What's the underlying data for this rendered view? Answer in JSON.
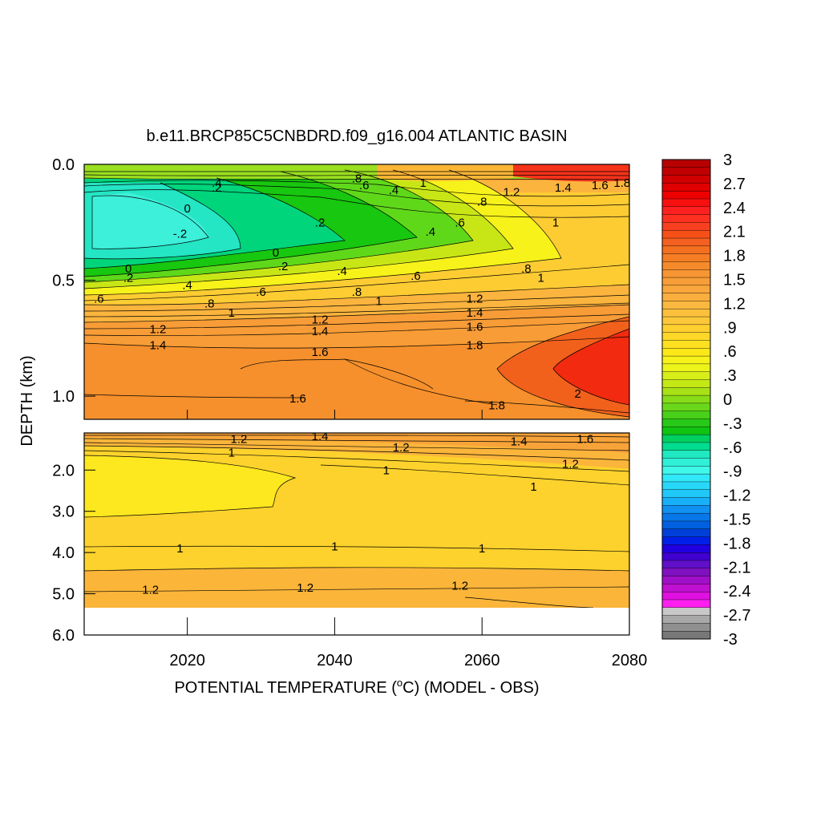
{
  "chart_data": {
    "type": "heatmap",
    "title": "b.e11.BRCP85C5CNBDRD.f09_g16.004 ATLANTIC BASIN",
    "xlabel": "POTENTIAL TEMPERATURE (",
    "xlabel_unit": "o",
    "xlabel_tail": "C) (MODEL - OBS)",
    "ylabel": "DEPTH (km)",
    "xlim": [
      2006,
      2080
    ],
    "x_ticks": [
      {
        "value": 2020,
        "label": "2020"
      },
      {
        "value": 2040,
        "label": "2040"
      },
      {
        "value": 2060,
        "label": "2060"
      },
      {
        "value": 2080,
        "label": "2080"
      }
    ],
    "upper_panel": {
      "ylim": [
        0.0,
        1.1
      ],
      "y_ticks": [
        {
          "value": 0.0,
          "label": "0.0"
        },
        {
          "value": 0.5,
          "label": "0.5"
        },
        {
          "value": 1.0,
          "label": "1.0"
        }
      ]
    },
    "lower_panel": {
      "ylim": [
        1.1,
        6.0
      ],
      "y_ticks": [
        {
          "value": 2.0,
          "label": "2.0"
        },
        {
          "value": 3.0,
          "label": "3.0"
        },
        {
          "value": 4.0,
          "label": "4.0"
        },
        {
          "value": 5.0,
          "label": "5.0"
        },
        {
          "value": 6.0,
          "label": "6.0"
        }
      ]
    },
    "colorbar": {
      "range": [
        -3,
        3
      ],
      "labels": [
        "3",
        "2.7",
        "2.4",
        "2.1",
        "1.8",
        "1.5",
        "1.2",
        ".9",
        ".6",
        ".3",
        "0",
        "-.3",
        "-.6",
        "-.9",
        "-1.2",
        "-1.5",
        "-1.8",
        "-2.1",
        "-2.4",
        "-2.7",
        "-3"
      ]
    },
    "upper_contour_labels": [
      {
        "text": ".4",
        "x": 2024,
        "y": 0.08
      },
      {
        "text": ".2",
        "x": 2024,
        "y": 0.1
      },
      {
        "text": ".8",
        "x": 2043,
        "y": 0.06
      },
      {
        "text": ".6",
        "x": 2044,
        "y": 0.09
      },
      {
        "text": ".4",
        "x": 2048,
        "y": 0.11
      },
      {
        "text": "1",
        "x": 2052,
        "y": 0.08
      },
      {
        "text": "1.2",
        "x": 2064,
        "y": 0.12
      },
      {
        "text": "1.4",
        "x": 2071,
        "y": 0.1
      },
      {
        "text": "1.6",
        "x": 2076,
        "y": 0.09
      },
      {
        "text": "1.8",
        "x": 2079,
        "y": 0.08
      },
      {
        "text": "0",
        "x": 2020,
        "y": 0.19
      },
      {
        "text": ".8",
        "x": 2060,
        "y": 0.16
      },
      {
        "text": ".6",
        "x": 2057,
        "y": 0.25
      },
      {
        "text": ".2",
        "x": 2038,
        "y": 0.25
      },
      {
        "text": "1",
        "x": 2070,
        "y": 0.25
      },
      {
        "text": "-.2",
        "x": 2019,
        "y": 0.3
      },
      {
        "text": ".4",
        "x": 2053,
        "y": 0.29
      },
      {
        "text": "0",
        "x": 2032,
        "y": 0.38
      },
      {
        "text": ".2",
        "x": 2033,
        "y": 0.44
      },
      {
        "text": "0",
        "x": 2012,
        "y": 0.45
      },
      {
        "text": ".2",
        "x": 2012,
        "y": 0.49
      },
      {
        "text": ".4",
        "x": 2041,
        "y": 0.46
      },
      {
        "text": ".6",
        "x": 2051,
        "y": 0.48
      },
      {
        "text": ".8",
        "x": 2066,
        "y": 0.45
      },
      {
        "text": "1",
        "x": 2068,
        "y": 0.49
      },
      {
        "text": ".4",
        "x": 2020,
        "y": 0.52
      },
      {
        "text": ".6",
        "x": 2030,
        "y": 0.55
      },
      {
        "text": ".8",
        "x": 2043,
        "y": 0.55
      },
      {
        "text": ".6",
        "x": 2008,
        "y": 0.58
      },
      {
        "text": "1",
        "x": 2046,
        "y": 0.59
      },
      {
        "text": "1.2",
        "x": 2059,
        "y": 0.58
      },
      {
        "text": ".8",
        "x": 2023,
        "y": 0.6
      },
      {
        "text": "1",
        "x": 2026,
        "y": 0.64
      },
      {
        "text": "1.4",
        "x": 2059,
        "y": 0.64
      },
      {
        "text": "1.2",
        "x": 2038,
        "y": 0.67
      },
      {
        "text": "1.6",
        "x": 2059,
        "y": 0.7
      },
      {
        "text": "1.2",
        "x": 2016,
        "y": 0.71
      },
      {
        "text": "1.4",
        "x": 2038,
        "y": 0.72
      },
      {
        "text": "1.4",
        "x": 2016,
        "y": 0.78
      },
      {
        "text": "1.8",
        "x": 2059,
        "y": 0.78
      },
      {
        "text": "1.6",
        "x": 2038,
        "y": 0.81
      },
      {
        "text": "2",
        "x": 2073,
        "y": 0.99
      },
      {
        "text": "1.6",
        "x": 2035,
        "y": 1.01
      },
      {
        "text": "1.8",
        "x": 2062,
        "y": 1.04
      }
    ],
    "lower_contour_labels": [
      {
        "text": "1.2",
        "x": 2027,
        "y": 1.25
      },
      {
        "text": "1",
        "x": 2026,
        "y": 1.58
      },
      {
        "text": "1.4",
        "x": 2038,
        "y": 1.18
      },
      {
        "text": "1.2",
        "x": 2049,
        "y": 1.45
      },
      {
        "text": "1.4",
        "x": 2065,
        "y": 1.3
      },
      {
        "text": "1.6",
        "x": 2074,
        "y": 1.25
      },
      {
        "text": "1.2",
        "x": 2072,
        "y": 1.85
      },
      {
        "text": "1",
        "x": 2047,
        "y": 2.0
      },
      {
        "text": "1",
        "x": 2067,
        "y": 2.4
      },
      {
        "text": "1",
        "x": 2019,
        "y": 3.9
      },
      {
        "text": "1",
        "x": 2040,
        "y": 3.85
      },
      {
        "text": "1",
        "x": 2060,
        "y": 3.9
      },
      {
        "text": "1.2",
        "x": 2015,
        "y": 4.9
      },
      {
        "text": "1.2",
        "x": 2036,
        "y": 4.85
      },
      {
        "text": "1.2",
        "x": 2057,
        "y": 4.8
      }
    ]
  }
}
